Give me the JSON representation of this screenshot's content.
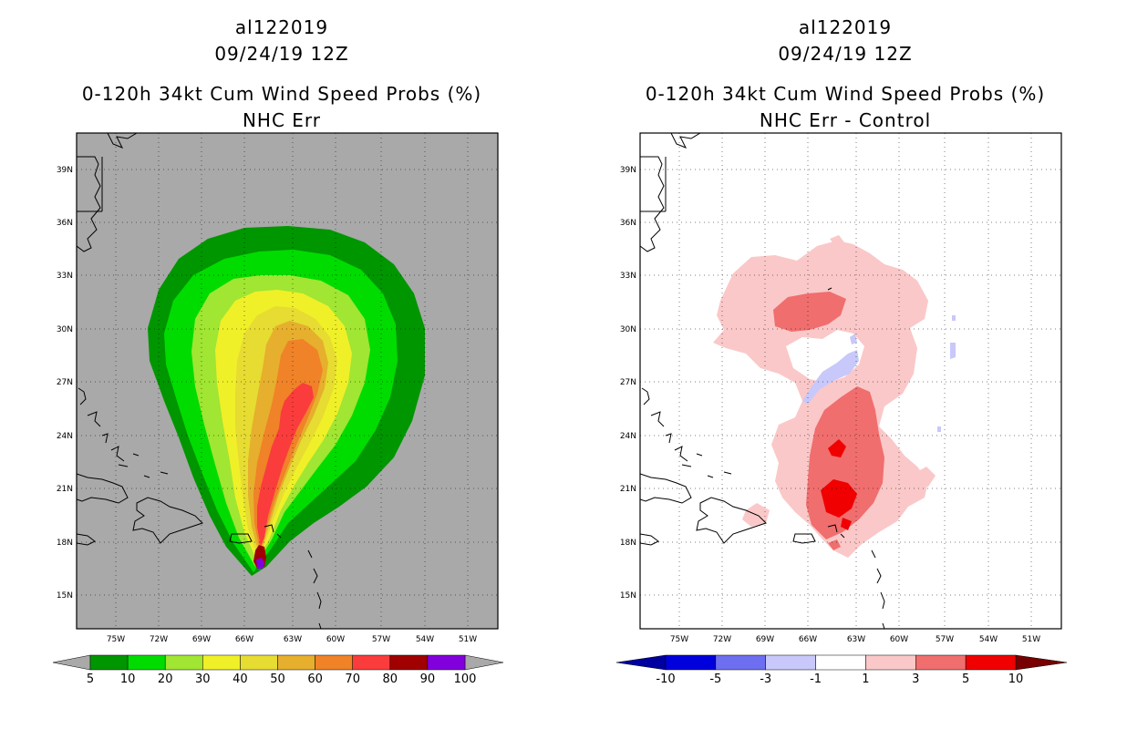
{
  "panels": {
    "left": {
      "storm_id": "al122019",
      "datetime": "09/24/19 12Z",
      "product": "0-120h 34kt Cum Wind Speed Probs (%)",
      "subtitle": "NHC Err",
      "background_color": "#a9a9a9",
      "colorbar": {
        "labels": [
          "5",
          "10",
          "20",
          "30",
          "40",
          "50",
          "60",
          "70",
          "80",
          "90",
          "100"
        ],
        "colors": [
          "#009600",
          "#00dc00",
          "#a0e632",
          "#f0f028",
          "#e6dc32",
          "#e6af2d",
          "#f08228",
          "#fa3c3c",
          "#a00000",
          "#8200dc"
        ],
        "end_color": "#a9a9a9"
      }
    },
    "right": {
      "storm_id": "al122019",
      "datetime": "09/24/19 12Z",
      "product": "0-120h 34kt Cum Wind Speed Probs (%)",
      "subtitle": "NHC Err - Control",
      "background_color": "#ffffff",
      "colorbar": {
        "labels": [
          "-10",
          "-5",
          "-3",
          "-1",
          "1",
          "3",
          "5",
          "10"
        ],
        "colors": [
          "#0000dc",
          "#6e6ef0",
          "#c8c8fa",
          "#ffffff",
          "#fac8c8",
          "#f06e6e",
          "#f00000"
        ],
        "low_end_color": "#0000a0",
        "high_end_color": "#780000"
      }
    }
  },
  "axes": {
    "lat_labels": [
      "39N",
      "36N",
      "33N",
      "30N",
      "27N",
      "24N",
      "21N",
      "18N",
      "15N"
    ],
    "lon_labels": [
      "75W",
      "72W",
      "69W",
      "66W",
      "63W",
      "60W",
      "57W",
      "54W",
      "51W"
    ]
  },
  "legend_icons": {
    "coastline": "coastline-icon",
    "gridline": "gridline-icon"
  }
}
